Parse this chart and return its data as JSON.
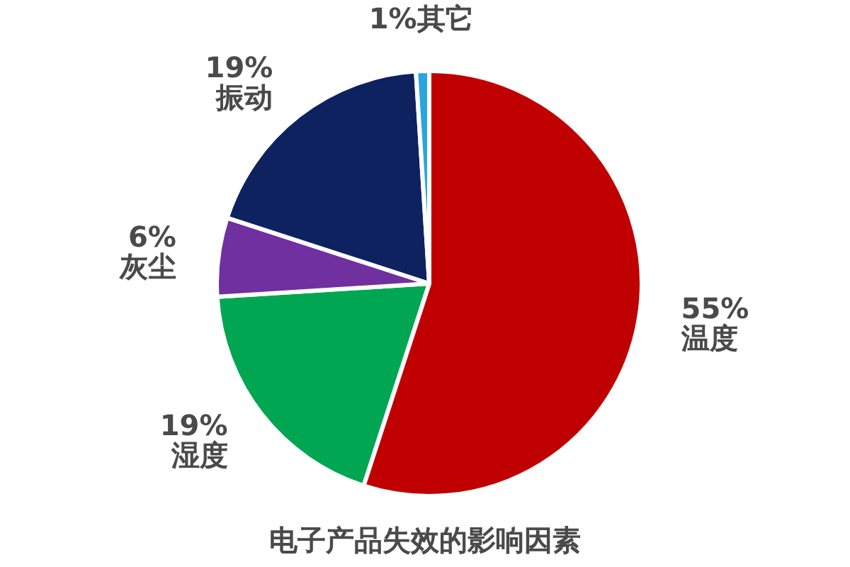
{
  "chart_data": {
    "type": "pie",
    "title": "电子产品失效的影响因素",
    "categories": [
      "温度",
      "湿度",
      "灰尘",
      "振动",
      "其它"
    ],
    "values": [
      55,
      19,
      6,
      19,
      1
    ],
    "colors": [
      "#c00000",
      "#00a651",
      "#7030a0",
      "#0e2260",
      "#2aa6de"
    ],
    "value_labels": [
      "55%",
      "19%",
      "6%",
      "19%",
      "1%"
    ]
  }
}
